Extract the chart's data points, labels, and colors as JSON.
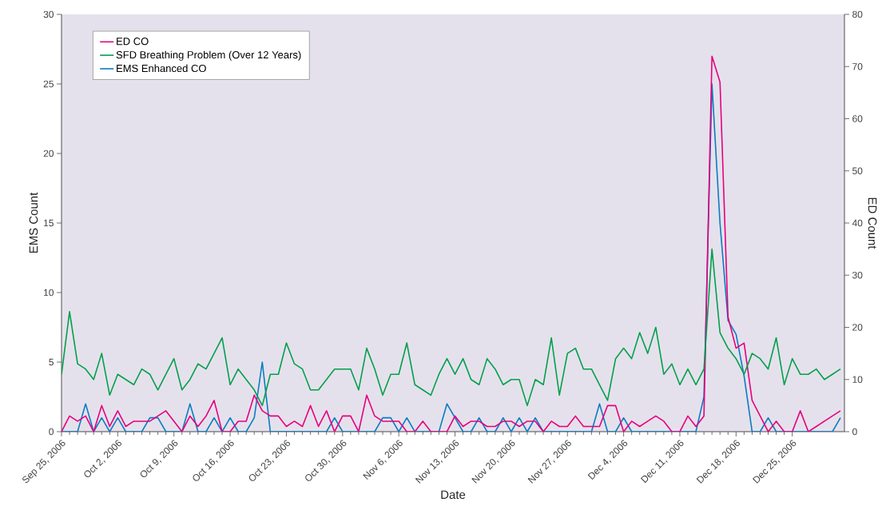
{
  "chart_data": {
    "type": "line",
    "xlabel": "Date",
    "ylabel": "EMS Count",
    "y2label": "ED Count",
    "legend": "top left",
    "xlim": [
      "2006-09-25",
      "2006-12-31T12:00"
    ],
    "ylim": [
      0,
      30
    ],
    "yticks": [
      0,
      5,
      10,
      15,
      20,
      25,
      30
    ],
    "y2lim": [
      0,
      80
    ],
    "y2ticks": [
      0,
      10,
      20,
      30,
      40,
      50,
      60,
      70,
      80
    ],
    "xticks": [
      {
        "value": "2006-09-25",
        "label": "Sep 25, 2006"
      },
      {
        "value": "2006-10-02",
        "label": "Oct 2, 2006"
      },
      {
        "value": "2006-10-09",
        "label": "Oct 9, 2006"
      },
      {
        "value": "2006-10-16",
        "label": "Oct 16, 2006"
      },
      {
        "value": "2006-10-23",
        "label": "Oct 23, 2006"
      },
      {
        "value": "2006-10-30",
        "label": "Oct 30, 2006"
      },
      {
        "value": "2006-11-06",
        "label": "Nov 6, 2006"
      },
      {
        "value": "2006-11-13",
        "label": "Nov 13, 2006"
      },
      {
        "value": "2006-11-20",
        "label": "Nov 20, 2006"
      },
      {
        "value": "2006-11-27",
        "label": "Nov 27, 2006"
      },
      {
        "value": "2006-12-04",
        "label": "Dec 4, 2006"
      },
      {
        "value": "2006-12-11",
        "label": "Dec 11, 2006"
      },
      {
        "value": "2006-12-18",
        "label": "Dec 18, 2006"
      },
      {
        "value": "2006-12-25",
        "label": "Dec 25, 2006"
      }
    ],
    "x": [
      "2006-09-25",
      "2006-09-26",
      "2006-09-27",
      "2006-09-28",
      "2006-09-29",
      "2006-09-30",
      "2006-10-01",
      "2006-10-02",
      "2006-10-03",
      "2006-10-04",
      "2006-10-05",
      "2006-10-06",
      "2006-10-07",
      "2006-10-08",
      "2006-10-09",
      "2006-10-10",
      "2006-10-11",
      "2006-10-12",
      "2006-10-13",
      "2006-10-14",
      "2006-10-15",
      "2006-10-16",
      "2006-10-17",
      "2006-10-18",
      "2006-10-19",
      "2006-10-20",
      "2006-10-21",
      "2006-10-22",
      "2006-10-23",
      "2006-10-24",
      "2006-10-25",
      "2006-10-26",
      "2006-10-27",
      "2006-10-28",
      "2006-10-29",
      "2006-10-30",
      "2006-10-31",
      "2006-11-01",
      "2006-11-02",
      "2006-11-03",
      "2006-11-04",
      "2006-11-05",
      "2006-11-06",
      "2006-11-07",
      "2006-11-08",
      "2006-11-09",
      "2006-11-10",
      "2006-11-11",
      "2006-11-12",
      "2006-11-13",
      "2006-11-14",
      "2006-11-15",
      "2006-11-16",
      "2006-11-17",
      "2006-11-18",
      "2006-11-19",
      "2006-11-20",
      "2006-11-21",
      "2006-11-22",
      "2006-11-23",
      "2006-11-24",
      "2006-11-25",
      "2006-11-26",
      "2006-11-27",
      "2006-11-28",
      "2006-11-29",
      "2006-11-30",
      "2006-12-01",
      "2006-12-02",
      "2006-12-03",
      "2006-12-04",
      "2006-12-05",
      "2006-12-06",
      "2006-12-07",
      "2006-12-08",
      "2006-12-09",
      "2006-12-10",
      "2006-12-11",
      "2006-12-12",
      "2006-12-13",
      "2006-12-14",
      "2006-12-15",
      "2006-12-16",
      "2006-12-17",
      "2006-12-18",
      "2006-12-19",
      "2006-12-20",
      "2006-12-21",
      "2006-12-22",
      "2006-12-23",
      "2006-12-24",
      "2006-12-25",
      "2006-12-26",
      "2006-12-27",
      "2006-12-28",
      "2006-12-29",
      "2006-12-30",
      "2006-12-31"
    ],
    "series": [
      {
        "name": "ED CO",
        "color": "#e6007e",
        "axis": "y2",
        "values": [
          0,
          3,
          2,
          3,
          0,
          5,
          1,
          4,
          1,
          2,
          2,
          2,
          3,
          4,
          2,
          0,
          3,
          1,
          3,
          6,
          0,
          0,
          2,
          2,
          7,
          4,
          3,
          3,
          1,
          2,
          1,
          5,
          1,
          4,
          0,
          3,
          3,
          0,
          7,
          3,
          2,
          2,
          2,
          0,
          0,
          2,
          0,
          0,
          0,
          3,
          1,
          2,
          2,
          1,
          1,
          2,
          2,
          1,
          2,
          2,
          0,
          2,
          1,
          1,
          3,
          1,
          1,
          1,
          5,
          5,
          0,
          2,
          1,
          2,
          3,
          2,
          0,
          0,
          3,
          1,
          3,
          72,
          67,
          22,
          16,
          17,
          6,
          3,
          0,
          2,
          0,
          0,
          4,
          0,
          1,
          2,
          3,
          4
        ]
      },
      {
        "name": "SFD Breathing Problem (Over 12 Years)",
        "color": "#00a04b",
        "axis": "y2",
        "values": [
          11,
          23,
          13,
          12,
          10,
          15,
          7,
          11,
          10,
          9,
          12,
          11,
          8,
          11,
          14,
          8,
          10,
          13,
          12,
          15,
          18,
          9,
          12,
          10,
          8,
          5,
          11,
          11,
          17,
          13,
          12,
          8,
          8,
          10,
          12,
          12,
          12,
          8,
          16,
          12,
          7,
          11,
          11,
          17,
          9,
          8,
          7,
          11,
          14,
          11,
          14,
          10,
          9,
          14,
          12,
          9,
          10,
          10,
          5,
          10,
          9,
          18,
          7,
          15,
          16,
          12,
          12,
          9,
          6,
          14,
          16,
          14,
          19,
          15,
          20,
          11,
          13,
          9,
          12,
          9,
          12,
          35,
          19,
          16,
          14,
          11,
          15,
          14,
          12,
          18,
          9,
          14,
          11,
          11,
          12,
          10,
          11,
          12
        ]
      },
      {
        "name": "EMS Enhanced CO",
        "color": "#0a7cc1",
        "values": [
          0,
          0,
          0,
          2,
          0,
          1,
          0,
          1,
          0,
          0,
          0,
          1,
          1,
          0,
          0,
          0,
          2,
          0,
          0,
          1,
          0,
          1,
          0,
          0,
          1,
          5,
          0,
          0,
          0,
          0,
          0,
          0,
          0,
          0,
          1,
          0,
          0,
          0,
          0,
          0,
          1,
          1,
          0,
          1,
          0,
          0,
          0,
          0,
          2,
          1,
          0,
          0,
          1,
          0,
          0,
          1,
          0,
          1,
          0,
          1,
          0,
          0,
          0,
          0,
          0,
          0,
          0,
          2,
          0,
          0,
          1,
          0,
          0,
          0,
          0,
          0,
          0,
          0,
          0,
          0,
          2.5,
          25,
          15,
          8,
          7,
          4,
          0,
          0,
          1,
          0,
          0,
          0,
          0,
          0,
          0,
          0,
          0,
          1
        ]
      }
    ]
  }
}
